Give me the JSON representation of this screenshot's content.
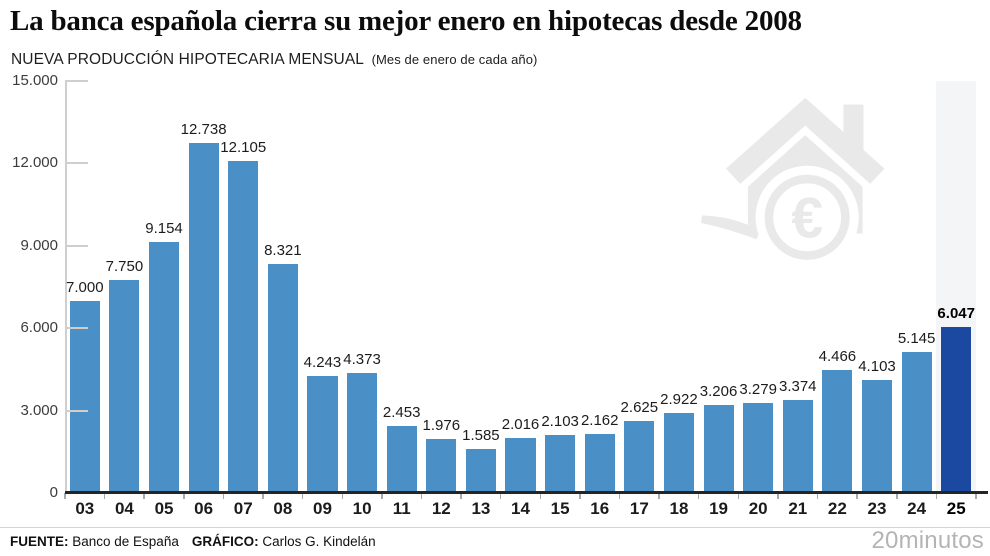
{
  "header": {
    "title": "La banca española cierra su mejor enero en hipotecas desde 2008",
    "subtitle": "NUEVA PRODUCCIÓN HIPOTECARIA MENSUAL",
    "subtitle_note": "(Mes de enero de cada año)"
  },
  "chart_data": {
    "type": "bar",
    "title": "NUEVA PRODUCCIÓN HIPOTECARIA MENSUAL (Mes de enero de cada año)",
    "categories": [
      "03",
      "04",
      "05",
      "06",
      "07",
      "08",
      "09",
      "10",
      "11",
      "12",
      "13",
      "14",
      "15",
      "16",
      "17",
      "18",
      "19",
      "20",
      "21",
      "22",
      "23",
      "24",
      "25"
    ],
    "values": [
      7000,
      7750,
      9154,
      12738,
      12105,
      8321,
      4243,
      4373,
      2453,
      1976,
      1585,
      2016,
      2103,
      2162,
      2625,
      2922,
      3206,
      3279,
      3374,
      4466,
      4103,
      5145,
      6047
    ],
    "value_labels": [
      "7.000",
      "7.750",
      "9.154",
      "12.738",
      "12.105",
      "8.321",
      "4.243",
      "4.373",
      "2.453",
      "1.976",
      "1.585",
      "2.016",
      "2.103",
      "2.162",
      "2.625",
      "2.922",
      "3.206",
      "3.279",
      "3.374",
      "4.466",
      "4.103",
      "5.145",
      "6.047"
    ],
    "ylim": [
      0,
      15000
    ],
    "yticks": [
      0,
      3000,
      6000,
      9000,
      12000,
      15000
    ],
    "ytick_labels": [
      "0",
      "3.000",
      "6.000",
      "9.000",
      "12.000",
      "15.000"
    ],
    "bar_color": "#4a90c6",
    "highlight_bar_color": "#1b49a2",
    "highlight_index": 22,
    "highlight_band_color": "#f4f5f7",
    "grid": false,
    "legend_position": "none"
  },
  "watermark": {
    "icon": "house-euro-icon",
    "color": "#e9e9e9"
  },
  "footer": {
    "source_label": "FUENTE:",
    "source_text": " Banco de España",
    "credit_label": "GRÁFICO:",
    "credit_text": " Carlos G. Kindelán",
    "brand": "20minutos"
  }
}
